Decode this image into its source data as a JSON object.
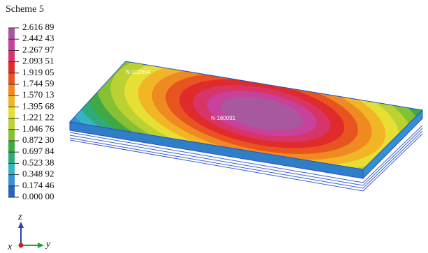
{
  "title": "Scheme 5",
  "legend": {
    "labels": [
      "2.616 89",
      "2.442 43",
      "2.267 97",
      "2.093 51",
      "1.919 05",
      "1.744 59",
      "1.570 13",
      "1.395 68",
      "1.221 22",
      "1.046 76",
      "0.872 30",
      "0.697 84",
      "0.523 38",
      "0.348 92",
      "0.174 46",
      "0.000 00"
    ],
    "colors": [
      "#a8589e",
      "#c8419a",
      "#d83468",
      "#e02a2c",
      "#e8541f",
      "#ef8a22",
      "#f2b526",
      "#e6df34",
      "#bcd233",
      "#86c035",
      "#3fa944",
      "#2fab79",
      "#35b4c6",
      "#3491d4",
      "#2e62c0"
    ]
  },
  "annotations": [
    "N-102954",
    "N-160091"
  ],
  "axes": {
    "z": "z",
    "y": "y",
    "x": "x"
  }
}
